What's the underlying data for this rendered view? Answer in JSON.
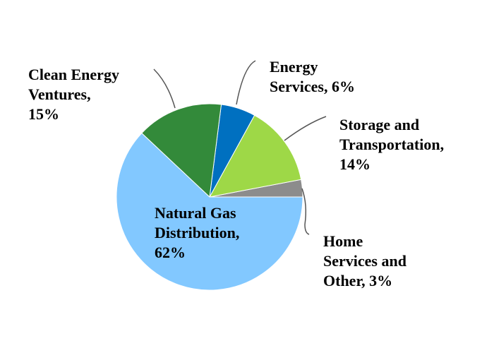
{
  "chart_data": {
    "type": "pie",
    "title": "",
    "start_angle_deg": 0,
    "direction": "counterclockwise",
    "slices": [
      {
        "label": "Home\nServices and\nOther, 3%",
        "name": "Home Services and Other",
        "value": 3,
        "color": "#8c8c8c"
      },
      {
        "label": "Storage and\nTransportation,\n14%",
        "name": "Storage and Transportation",
        "value": 14,
        "color": "#9ed847"
      },
      {
        "label": "Energy\nServices, 6%",
        "name": "Energy Services",
        "value": 6,
        "color": "#0070c0"
      },
      {
        "label": "Clean Energy\nVentures,\n15%",
        "name": "Clean Energy Ventures",
        "value": 15,
        "color": "#338a3a"
      },
      {
        "label": "Natural Gas\nDistribution,\n62%",
        "name": "Natural Gas Distribution",
        "value": 62,
        "color": "#82c8ff"
      }
    ]
  }
}
